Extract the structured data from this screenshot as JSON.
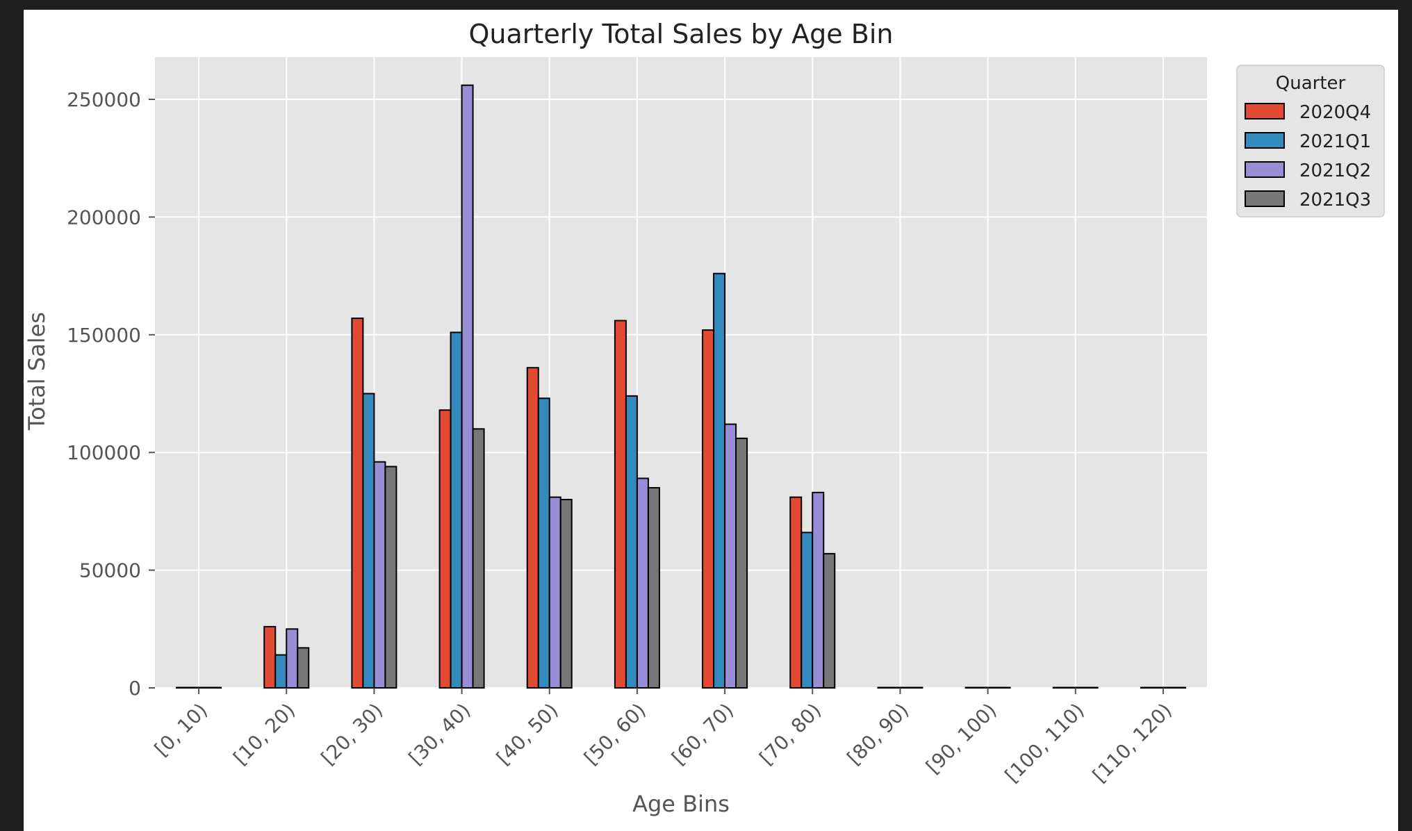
{
  "chart_data": {
    "type": "bar",
    "title": "Quarterly Total Sales by Age Bin",
    "xlabel": "Age Bins",
    "ylabel": "Total Sales",
    "ylim": [
      0,
      268000
    ],
    "yticks": [
      0,
      50000,
      100000,
      150000,
      200000,
      250000
    ],
    "ytick_labels": [
      "0",
      "50000",
      "100000",
      "150000",
      "200000",
      "250000"
    ],
    "grid": true,
    "legend_title": "Quarter",
    "legend_position": "outside-top-right",
    "categories": [
      "[0, 10)",
      "[10, 20)",
      "[20, 30)",
      "[30, 40)",
      "[40, 50)",
      "[50, 60)",
      "[60, 70)",
      "[70, 80)",
      "[80, 90)",
      "[90, 100)",
      "[100, 110)",
      "[110, 120)"
    ],
    "series": [
      {
        "name": "2020Q4",
        "color": "#e24a33",
        "values": [
          0,
          26000,
          157000,
          118000,
          136000,
          156000,
          152000,
          81000,
          0,
          0,
          0,
          0
        ]
      },
      {
        "name": "2021Q1",
        "color": "#348abd",
        "values": [
          0,
          14000,
          125000,
          151000,
          123000,
          124000,
          176000,
          66000,
          0,
          0,
          0,
          0
        ]
      },
      {
        "name": "2021Q2",
        "color": "#988ed5",
        "values": [
          0,
          25000,
          96000,
          256000,
          81000,
          89000,
          112000,
          83000,
          0,
          0,
          0,
          0
        ]
      },
      {
        "name": "2021Q3",
        "color": "#777777",
        "values": [
          0,
          17000,
          94000,
          110000,
          80000,
          85000,
          106000,
          57000,
          0,
          0,
          0,
          0
        ]
      }
    ]
  },
  "style": {
    "axes_bg": "#e5e5e5",
    "grid_color": "#ffffff",
    "text_color": "#555555",
    "title_color": "#222222",
    "edge_color": "#000000"
  }
}
